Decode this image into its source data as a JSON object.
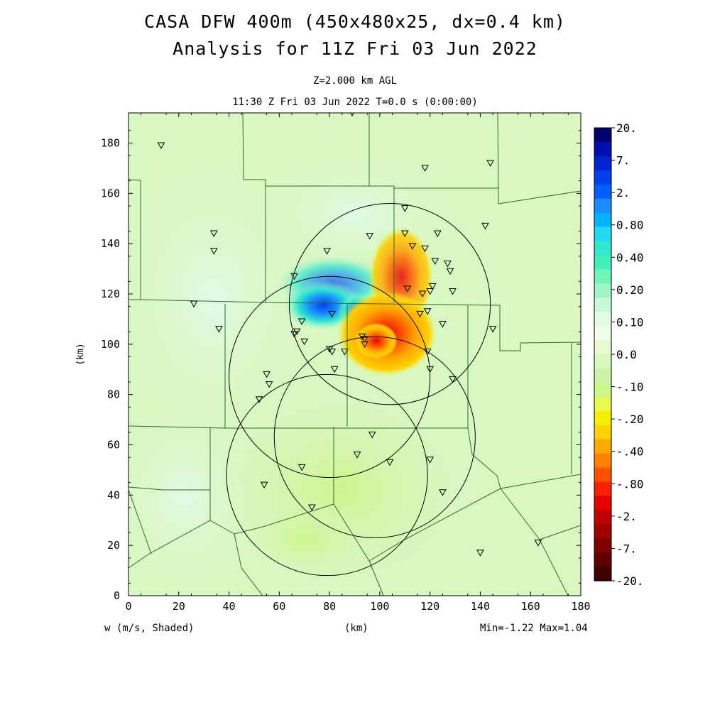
{
  "header": {
    "title_line1": "CASA DFW 400m (450x480x25, dx=0.4 km)",
    "title_line2": "Analysis for 11Z Fri 03 Jun 2022",
    "level": "Z=2.000 km AGL",
    "time": "11:30 Z Fri 03 Jun 2022   T=0.0 s (0:00:00)"
  },
  "footer": {
    "variable": "w (m/s, Shaded)",
    "xunit": "(km)",
    "minmax": "Min=-1.22 Max=1.04"
  },
  "colors": {
    "background_field": "#d9f7c1",
    "border_lines": "#2b6b2b",
    "radar_rings": "#000000"
  },
  "chart_data": {
    "type": "heatmap",
    "xlabel": "(km)",
    "ylabel": "(km)",
    "xlim": [
      0,
      180
    ],
    "ylim": [
      0,
      192
    ],
    "x_ticks": [
      0,
      20,
      40,
      60,
      80,
      100,
      120,
      140,
      160,
      180
    ],
    "y_ticks": [
      0,
      20,
      40,
      60,
      80,
      100,
      120,
      140,
      160,
      180
    ],
    "colorbar": {
      "labels": [
        "20.",
        "7.",
        "2.",
        "0.80",
        "0.40",
        "0.20",
        "0.10",
        "0.0",
        "-.10",
        "-.20",
        "-.40",
        "-.80",
        "-2.",
        "-7.",
        "-20."
      ],
      "colors": [
        "#000070",
        "#0010b0",
        "#0025d0",
        "#0040f0",
        "#0060ff",
        "#1a8cff",
        "#00b4ff",
        "#20d8f0",
        "#30e8d0",
        "#40f0b8",
        "#70f5b8",
        "#a0f5c8",
        "#c8f8d8",
        "#e0fbe8",
        "#f0fde8",
        "#e8f8d0",
        "#d9f7c1",
        "#ccf4a8",
        "#ccf58a",
        "#e8fa50",
        "#f2f000",
        "#ffd000",
        "#ffaa00",
        "#ff8000",
        "#ff5000",
        "#ff2000",
        "#e80000",
        "#c00000",
        "#a00000",
        "#800000",
        "#600000",
        "#400000"
      ]
    },
    "radar_rings": [
      {
        "cx": 79,
        "cy": 48,
        "r": 40
      },
      {
        "cx": 80,
        "cy": 87,
        "r": 40
      },
      {
        "cx": 104,
        "cy": 116,
        "r": 40
      },
      {
        "cx": 98,
        "cy": 63,
        "r": 40
      }
    ],
    "stations": [
      [
        13,
        179
      ],
      [
        89,
        192
      ],
      [
        118,
        170
      ],
      [
        144,
        172
      ],
      [
        110,
        154
      ],
      [
        142,
        147
      ],
      [
        34,
        144
      ],
      [
        34,
        137
      ],
      [
        96,
        143
      ],
      [
        110,
        144
      ],
      [
        123,
        144
      ],
      [
        113,
        139
      ],
      [
        118,
        138
      ],
      [
        79,
        137
      ],
      [
        122,
        133
      ],
      [
        127,
        132
      ],
      [
        128,
        129
      ],
      [
        66,
        127
      ],
      [
        129,
        121
      ],
      [
        111,
        122
      ],
      [
        121,
        123
      ],
      [
        120,
        121
      ],
      [
        117,
        120
      ],
      [
        26,
        116
      ],
      [
        125,
        108
      ],
      [
        145,
        106
      ],
      [
        119,
        113
      ],
      [
        116,
        112
      ],
      [
        81,
        112
      ],
      [
        69,
        109
      ],
      [
        36,
        106
      ],
      [
        93,
        103
      ],
      [
        67,
        105
      ],
      [
        66,
        104
      ],
      [
        70,
        101
      ],
      [
        94,
        102
      ],
      [
        94,
        100
      ],
      [
        80,
        98
      ],
      [
        81,
        97
      ],
      [
        86,
        97
      ],
      [
        119,
        97
      ],
      [
        82,
        90
      ],
      [
        120,
        90
      ],
      [
        129,
        86
      ],
      [
        55,
        88
      ],
      [
        56,
        84
      ],
      [
        52,
        78
      ],
      [
        97,
        64
      ],
      [
        91,
        56
      ],
      [
        104,
        53
      ],
      [
        120,
        54
      ],
      [
        69,
        51
      ],
      [
        54,
        44
      ],
      [
        125,
        41
      ],
      [
        73,
        35
      ],
      [
        140,
        17
      ],
      [
        163,
        21
      ]
    ],
    "features": [
      {
        "label": "strongest upward motion (blue)",
        "x": 89,
        "y": 112,
        "value": 1.04
      },
      {
        "label": "strongest downward motion (red)",
        "x": 97,
        "y": 105,
        "value": -1.22
      }
    ]
  }
}
